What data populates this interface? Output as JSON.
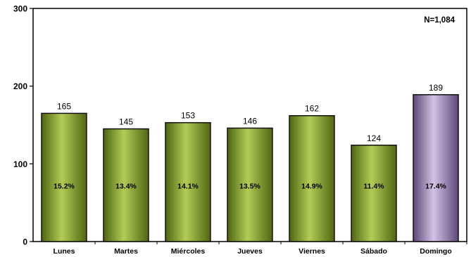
{
  "chart_data": {
    "type": "bar",
    "categories": [
      "Lunes",
      "Martes",
      "Miércoles",
      "Jueves",
      "Viernes",
      "Sábado",
      "Domingo"
    ],
    "values": [
      165,
      145,
      153,
      146,
      162,
      124,
      189
    ],
    "percentages": [
      "15.2%",
      "13.4%",
      "14.1%",
      "13.5%",
      "14.9%",
      "11.4%",
      "17.4%"
    ],
    "ylim": [
      0,
      300
    ],
    "yticks": [
      0,
      100,
      200,
      300
    ],
    "annotation": "N=1,084",
    "grid": false,
    "legend": "none",
    "colors": {
      "default_bar": "#7f9a25",
      "highlight_bar": "#8c72a8"
    },
    "highlight_index": 6
  }
}
